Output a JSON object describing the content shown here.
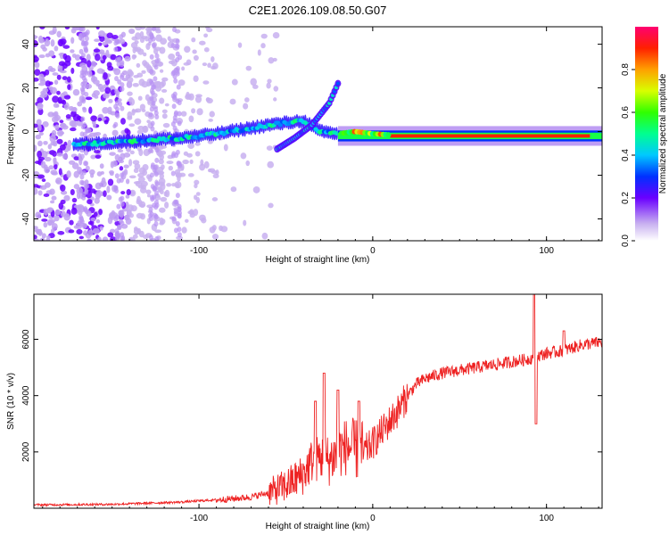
{
  "title": "C2E1.2026.109.08.50.G07",
  "colorbar": {
    "label": "Normalized spectral amplitude",
    "ticks": [
      "0.0",
      "0.2",
      "0.4",
      "0.6",
      "0.8"
    ],
    "tick_values": [
      0.0,
      0.2,
      0.4,
      0.6,
      0.8
    ],
    "range": [
      0,
      1
    ]
  },
  "chart_data": [
    {
      "type": "heatmap",
      "title": "C2E1.2026.109.08.50.G07",
      "xlabel": "Height of straight line (km)",
      "ylabel": "Frequency (Hz)",
      "xlim": [
        -195,
        132
      ],
      "ylim": [
        -50,
        48
      ],
      "xticks": [
        -100,
        0,
        100
      ],
      "xtick_labels": [
        "-100",
        "0",
        "100"
      ],
      "yticks": [
        -40,
        -20,
        0,
        20,
        40
      ],
      "ytick_labels": [
        "-40",
        "-20",
        "0",
        "20",
        "40"
      ],
      "ridge": {
        "x": [
          -170,
          -150,
          -130,
          -110,
          -90,
          -75,
          -60,
          -50,
          -40,
          -30,
          -20,
          -10,
          0,
          20,
          40,
          60,
          80,
          100,
          132
        ],
        "y": [
          -6,
          -5,
          -4,
          -3,
          -1,
          1,
          3,
          4,
          5,
          0,
          -1,
          0,
          -1,
          -2,
          -2,
          -2,
          -2,
          -2,
          -2
        ]
      },
      "secondary_branch": {
        "x": [
          -55,
          -45,
          -35,
          -25,
          -20
        ],
        "y": [
          -8,
          -3,
          3,
          13,
          22
        ]
      }
    },
    {
      "type": "line",
      "xlabel": "Height of straight line (km)",
      "ylabel": "SNR (10 * v/v)",
      "xlim": [
        -195,
        132
      ],
      "ylim": [
        0,
        7600
      ],
      "xticks": [
        -100,
        0,
        100
      ],
      "xtick_labels": [
        "-100",
        "0",
        "100"
      ],
      "yticks": [
        2000,
        4000,
        6000
      ],
      "ytick_labels": [
        "2000",
        "4000",
        "6000"
      ],
      "color": "#ee2222",
      "series": [
        {
          "name": "SNR",
          "x": [
            -195,
            -170,
            -150,
            -130,
            -110,
            -90,
            -80,
            -70,
            -60,
            -50,
            -40,
            -35,
            -30,
            -25,
            -20,
            -15,
            -10,
            -5,
            0,
            5,
            10,
            15,
            20,
            25,
            30,
            40,
            50,
            60,
            70,
            80,
            90,
            95,
            100,
            110,
            120,
            132
          ],
          "y": [
            120,
            130,
            140,
            180,
            220,
            300,
            340,
            400,
            550,
            800,
            1200,
            1700,
            1800,
            1700,
            2000,
            2200,
            2100,
            2000,
            2300,
            2700,
            3100,
            3500,
            4000,
            4400,
            4600,
            4800,
            4900,
            5000,
            5100,
            5200,
            5300,
            5400,
            5500,
            5600,
            5800,
            5900
          ],
          "spikes": [
            {
              "x": -33,
              "y": 3800
            },
            {
              "x": -28,
              "y": 4800
            },
            {
              "x": -20,
              "y": 4200
            },
            {
              "x": -8,
              "y": 3800
            },
            {
              "x": 93,
              "y": 7600
            },
            {
              "x": 94,
              "y": 3000
            },
            {
              "x": 110,
              "y": 6300
            }
          ]
        }
      ]
    }
  ]
}
